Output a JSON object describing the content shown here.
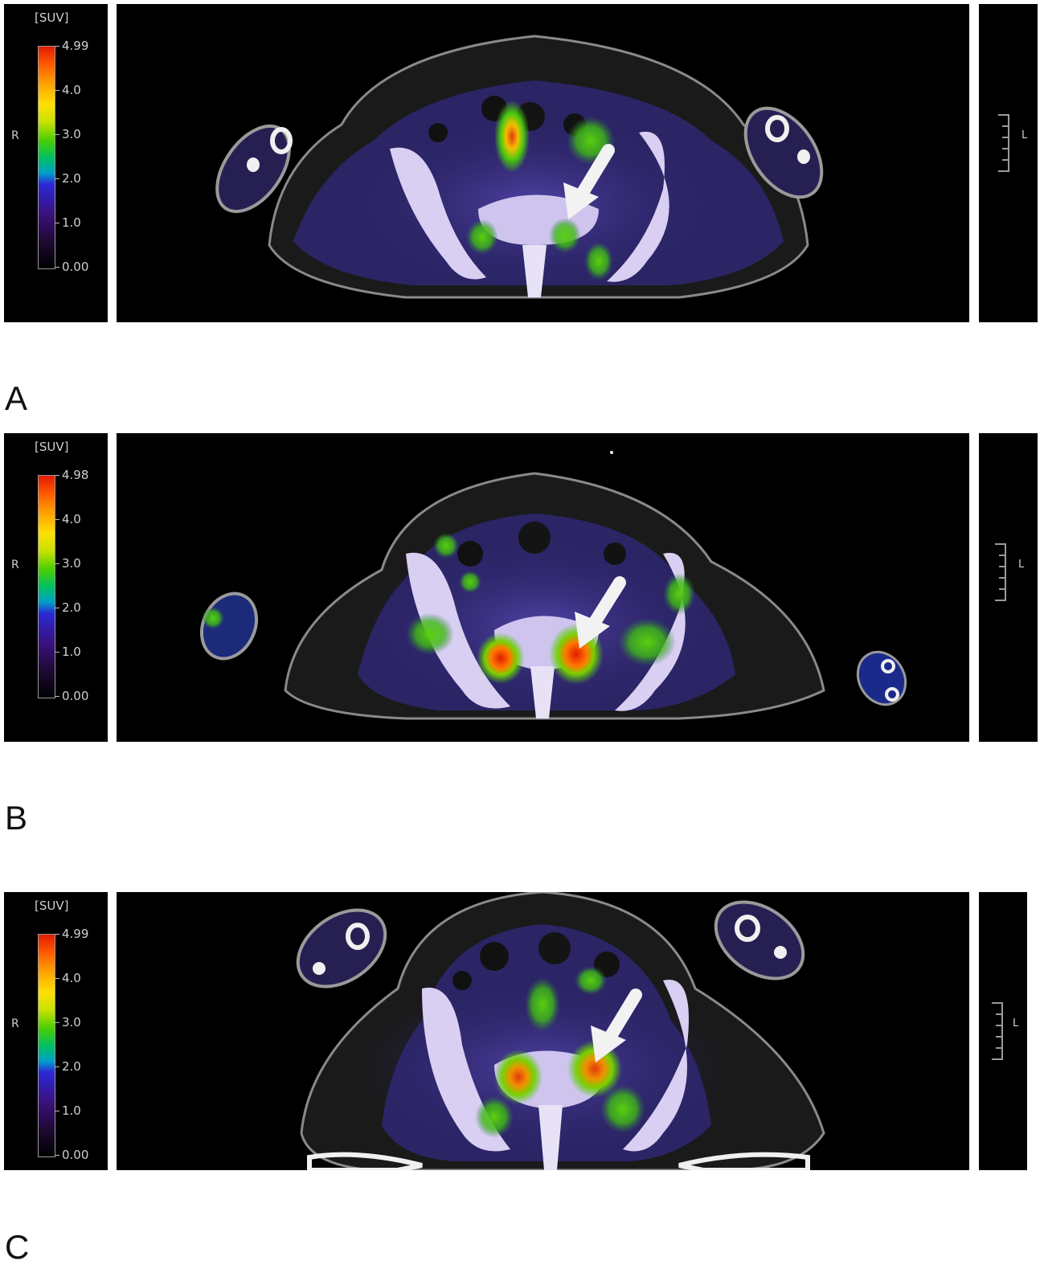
{
  "panels": [
    {
      "letter": "A",
      "unit": "[SUV]",
      "side_left": "R",
      "side_right": "L",
      "scale_max": "4.99",
      "scale_labels": [
        "4.0",
        "3.0",
        "2.0",
        "1.0",
        "0.00"
      ]
    },
    {
      "letter": "B",
      "unit": "[SUV]",
      "side_left": "R",
      "side_right": "L",
      "scale_max": "4.98",
      "scale_labels": [
        "4.0",
        "3.0",
        "2.0",
        "1.0",
        "0.00"
      ]
    },
    {
      "letter": "C",
      "unit": "[SUV]",
      "side_left": "R",
      "side_right": "L",
      "scale_max": "4.99",
      "scale_labels": [
        "4.0",
        "3.0",
        "2.0",
        "1.0",
        "0.00"
      ]
    }
  ],
  "colors": {
    "background": "#000000",
    "bone": "#d9cff2",
    "soft_tissue": "#3b2f7a",
    "uptake_green": "#43c80e",
    "uptake_red": "#e53a10",
    "arrow": "#f2f2f2"
  }
}
